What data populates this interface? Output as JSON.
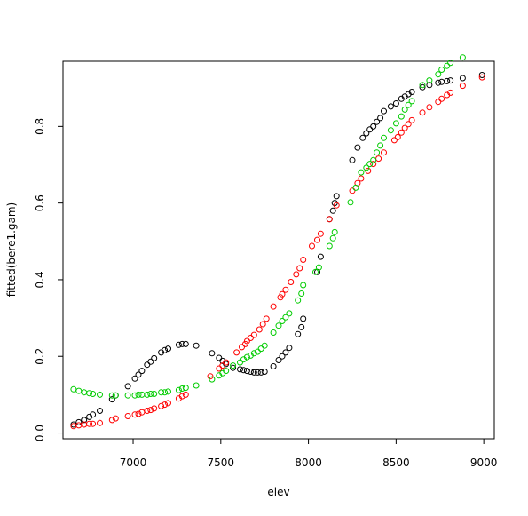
{
  "chart_data": {
    "type": "scatter",
    "title": "",
    "xlabel": "elev",
    "ylabel": "fitted(bere1.gam)",
    "xlim": [
      6600,
      9060
    ],
    "ylim": [
      -0.015,
      0.97
    ],
    "xticks": [
      7000,
      7500,
      8000,
      8500,
      9000
    ],
    "yticks": [
      0.0,
      0.2,
      0.4,
      0.6,
      0.8
    ],
    "xtick_labels": [
      "7000",
      "7500",
      "8000",
      "8500",
      "9000"
    ],
    "ytick_labels": [
      "0.0",
      "0.2",
      "0.4",
      "0.6",
      "0.8"
    ],
    "grid": false,
    "marker": "open-circle",
    "series": [
      {
        "color": "#000000",
        "points": [
          [
            6660,
            0.022
          ],
          [
            6690,
            0.028
          ],
          [
            6720,
            0.034
          ],
          [
            6750,
            0.042
          ],
          [
            6770,
            0.048
          ],
          [
            6810,
            0.058
          ],
          [
            6880,
            0.088
          ],
          [
            6900,
            0.098
          ],
          [
            6970,
            0.122
          ],
          [
            7010,
            0.142
          ],
          [
            7030,
            0.152
          ],
          [
            7050,
            0.162
          ],
          [
            7080,
            0.178
          ],
          [
            7100,
            0.186
          ],
          [
            7120,
            0.195
          ],
          [
            7160,
            0.21
          ],
          [
            7180,
            0.216
          ],
          [
            7200,
            0.22
          ],
          [
            7260,
            0.23
          ],
          [
            7280,
            0.232
          ],
          [
            7300,
            0.232
          ],
          [
            7360,
            0.228
          ],
          [
            7450,
            0.208
          ],
          [
            7490,
            0.196
          ],
          [
            7510,
            0.188
          ],
          [
            7530,
            0.18
          ],
          [
            7570,
            0.17
          ],
          [
            7610,
            0.166
          ],
          [
            7630,
            0.164
          ],
          [
            7650,
            0.162
          ],
          [
            7670,
            0.16
          ],
          [
            7690,
            0.158
          ],
          [
            7710,
            0.158
          ],
          [
            7730,
            0.158
          ],
          [
            7750,
            0.16
          ],
          [
            7800,
            0.174
          ],
          [
            7830,
            0.19
          ],
          [
            7850,
            0.2
          ],
          [
            7870,
            0.21
          ],
          [
            7890,
            0.222
          ],
          [
            7940,
            0.258
          ],
          [
            7960,
            0.276
          ],
          [
            7970,
            0.298
          ],
          [
            8050,
            0.42
          ],
          [
            8070,
            0.46
          ],
          [
            8120,
            0.558
          ],
          [
            8140,
            0.58
          ],
          [
            8150,
            0.6
          ],
          [
            8160,
            0.618
          ],
          [
            8250,
            0.712
          ],
          [
            8280,
            0.745
          ],
          [
            8310,
            0.77
          ],
          [
            8330,
            0.782
          ],
          [
            8350,
            0.792
          ],
          [
            8370,
            0.8
          ],
          [
            8390,
            0.812
          ],
          [
            8410,
            0.822
          ],
          [
            8430,
            0.84
          ],
          [
            8470,
            0.852
          ],
          [
            8500,
            0.86
          ],
          [
            8530,
            0.872
          ],
          [
            8550,
            0.878
          ],
          [
            8570,
            0.884
          ],
          [
            8590,
            0.89
          ],
          [
            8650,
            0.902
          ],
          [
            8690,
            0.908
          ],
          [
            8740,
            0.914
          ],
          [
            8760,
            0.916
          ],
          [
            8790,
            0.918
          ],
          [
            8810,
            0.92
          ],
          [
            8880,
            0.926
          ],
          [
            8990,
            0.934
          ]
        ]
      },
      {
        "color": "#ff0000",
        "points": [
          [
            6660,
            0.018
          ],
          [
            6690,
            0.02
          ],
          [
            6720,
            0.022
          ],
          [
            6750,
            0.024
          ],
          [
            6770,
            0.024
          ],
          [
            6810,
            0.026
          ],
          [
            6880,
            0.034
          ],
          [
            6900,
            0.038
          ],
          [
            6970,
            0.044
          ],
          [
            7010,
            0.048
          ],
          [
            7030,
            0.05
          ],
          [
            7050,
            0.054
          ],
          [
            7080,
            0.058
          ],
          [
            7100,
            0.06
          ],
          [
            7120,
            0.064
          ],
          [
            7160,
            0.07
          ],
          [
            7180,
            0.074
          ],
          [
            7200,
            0.078
          ],
          [
            7260,
            0.09
          ],
          [
            7280,
            0.096
          ],
          [
            7300,
            0.1
          ],
          [
            7440,
            0.148
          ],
          [
            7490,
            0.168
          ],
          [
            7510,
            0.176
          ],
          [
            7530,
            0.184
          ],
          [
            7590,
            0.21
          ],
          [
            7620,
            0.224
          ],
          [
            7640,
            0.232
          ],
          [
            7650,
            0.24
          ],
          [
            7670,
            0.248
          ],
          [
            7690,
            0.256
          ],
          [
            7720,
            0.27
          ],
          [
            7740,
            0.284
          ],
          [
            7760,
            0.298
          ],
          [
            7800,
            0.33
          ],
          [
            7840,
            0.354
          ],
          [
            7850,
            0.362
          ],
          [
            7870,
            0.374
          ],
          [
            7900,
            0.394
          ],
          [
            7930,
            0.414
          ],
          [
            7950,
            0.43
          ],
          [
            7970,
            0.452
          ],
          [
            8020,
            0.488
          ],
          [
            8050,
            0.504
          ],
          [
            8070,
            0.52
          ],
          [
            8120,
            0.558
          ],
          [
            8160,
            0.594
          ],
          [
            8250,
            0.632
          ],
          [
            8280,
            0.652
          ],
          [
            8300,
            0.664
          ],
          [
            8340,
            0.684
          ],
          [
            8370,
            0.702
          ],
          [
            8400,
            0.716
          ],
          [
            8430,
            0.732
          ],
          [
            8490,
            0.764
          ],
          [
            8510,
            0.772
          ],
          [
            8530,
            0.784
          ],
          [
            8550,
            0.796
          ],
          [
            8570,
            0.806
          ],
          [
            8590,
            0.816
          ],
          [
            8650,
            0.836
          ],
          [
            8690,
            0.85
          ],
          [
            8740,
            0.864
          ],
          [
            8760,
            0.872
          ],
          [
            8790,
            0.882
          ],
          [
            8810,
            0.888
          ],
          [
            8880,
            0.906
          ],
          [
            8990,
            0.928
          ]
        ]
      },
      {
        "color": "#00cc00",
        "points": [
          [
            6660,
            0.114
          ],
          [
            6690,
            0.11
          ],
          [
            6720,
            0.106
          ],
          [
            6750,
            0.104
          ],
          [
            6770,
            0.102
          ],
          [
            6810,
            0.1
          ],
          [
            6880,
            0.098
          ],
          [
            6900,
            0.098
          ],
          [
            6970,
            0.098
          ],
          [
            7010,
            0.098
          ],
          [
            7030,
            0.1
          ],
          [
            7050,
            0.1
          ],
          [
            7080,
            0.1
          ],
          [
            7100,
            0.102
          ],
          [
            7120,
            0.102
          ],
          [
            7160,
            0.106
          ],
          [
            7180,
            0.106
          ],
          [
            7200,
            0.108
          ],
          [
            7260,
            0.112
          ],
          [
            7280,
            0.116
          ],
          [
            7300,
            0.118
          ],
          [
            7360,
            0.124
          ],
          [
            7450,
            0.14
          ],
          [
            7490,
            0.15
          ],
          [
            7510,
            0.156
          ],
          [
            7530,
            0.162
          ],
          [
            7570,
            0.176
          ],
          [
            7610,
            0.184
          ],
          [
            7630,
            0.192
          ],
          [
            7650,
            0.198
          ],
          [
            7670,
            0.202
          ],
          [
            7690,
            0.208
          ],
          [
            7710,
            0.212
          ],
          [
            7730,
            0.22
          ],
          [
            7750,
            0.228
          ],
          [
            7800,
            0.262
          ],
          [
            7830,
            0.28
          ],
          [
            7850,
            0.292
          ],
          [
            7870,
            0.302
          ],
          [
            7890,
            0.312
          ],
          [
            7940,
            0.346
          ],
          [
            7960,
            0.364
          ],
          [
            7970,
            0.386
          ],
          [
            8040,
            0.42
          ],
          [
            8060,
            0.432
          ],
          [
            8120,
            0.488
          ],
          [
            8140,
            0.508
          ],
          [
            8150,
            0.524
          ],
          [
            8240,
            0.602
          ],
          [
            8270,
            0.64
          ],
          [
            8300,
            0.68
          ],
          [
            8330,
            0.692
          ],
          [
            8350,
            0.702
          ],
          [
            8370,
            0.712
          ],
          [
            8390,
            0.732
          ],
          [
            8410,
            0.75
          ],
          [
            8430,
            0.77
          ],
          [
            8470,
            0.79
          ],
          [
            8500,
            0.808
          ],
          [
            8530,
            0.826
          ],
          [
            8550,
            0.844
          ],
          [
            8570,
            0.856
          ],
          [
            8590,
            0.866
          ],
          [
            8650,
            0.908
          ],
          [
            8690,
            0.92
          ],
          [
            8740,
            0.936
          ],
          [
            8760,
            0.948
          ],
          [
            8790,
            0.958
          ],
          [
            8810,
            0.966
          ],
          [
            8880,
            0.98
          ]
        ]
      }
    ]
  }
}
